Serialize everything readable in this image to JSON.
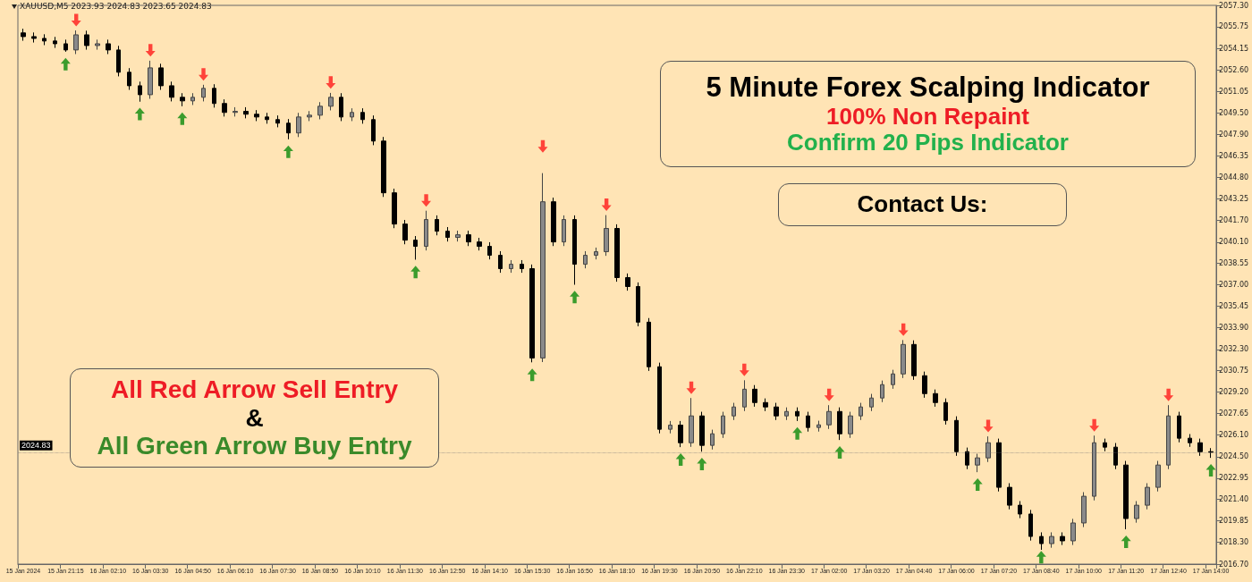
{
  "chart_data": {
    "type": "candlestick",
    "title": "5 Minute Forex Scalping Indicator",
    "annotations": [
      "XAUUSD,M5  2023.93 2024.83 2023.65 2024.83",
      "100% Non Repaint",
      "Confirm 20 Pips Indicator",
      "Contact Us:",
      "All Red Arrow Sell Entry",
      "&",
      "All Green Arrow Buy Entry"
    ],
    "categories": [
      "15 Jan 2024",
      null,
      null,
      null,
      "15 Jan 21:15",
      null,
      null,
      null,
      "16 Jan 02:10",
      null,
      null,
      null,
      "16 Jan 03:30",
      null,
      null,
      null,
      "16 Jan 04:50",
      null,
      null,
      null,
      "16 Jan 06:10",
      null,
      null,
      null,
      "16 Jan 07:30",
      null,
      null,
      null,
      "16 Jan 08:50",
      null,
      null,
      null,
      "16 Jan 10:10",
      null,
      null,
      null,
      "16 Jan 11:30",
      null,
      null,
      null,
      "16 Jan 12:50",
      null,
      null,
      null,
      "16 Jan 14:10",
      null,
      null,
      null,
      "16 Jan 15:30",
      null,
      null,
      null,
      "16 Jan 16:50",
      null,
      null,
      null,
      "16 Jan 18:10",
      null,
      null,
      null,
      "16 Jan 19:30",
      null,
      null,
      null,
      "16 Jan 20:50",
      null,
      null,
      null,
      "16 Jan 22:10",
      null,
      null,
      null,
      "16 Jan 23:30",
      null,
      null,
      null,
      "17 Jan 02:00",
      null,
      null,
      null,
      "17 Jan 03:20",
      null,
      null,
      null,
      "17 Jan 04:40",
      null,
      null,
      null,
      "17 Jan 06:00",
      null,
      null,
      null,
      "17 Jan 07:20",
      null,
      null,
      null,
      "17 Jan 08:40",
      null,
      null,
      null,
      "17 Jan 10:00",
      null,
      null,
      null,
      "17 Jan 11:20",
      null,
      null,
      null,
      "17 Jan 12:40",
      null,
      null,
      null,
      "17 Jan 14:00"
    ],
    "ohlc": [
      [
        2055.3,
        2055.6,
        2054.73,
        2055.03
      ],
      [
        2055.03,
        2055.33,
        2054.6,
        2054.9
      ],
      [
        2054.9,
        2055.2,
        2054.41,
        2054.71
      ],
      [
        2054.71,
        2055.01,
        2054.21,
        2054.51
      ],
      [
        2054.51,
        2054.81,
        2053.93,
        2054.06
      ],
      [
        2054.06,
        2055.48,
        2053.76,
        2055.16
      ],
      [
        2055.16,
        2055.46,
        2054.08,
        2054.38
      ],
      [
        2054.38,
        2054.81,
        2054.08,
        2054.51
      ],
      [
        2054.51,
        2054.81,
        2053.76,
        2054.06
      ],
      [
        2054.06,
        2054.36,
        2052.14,
        2052.44
      ],
      [
        2052.44,
        2052.74,
        2051.16,
        2051.46
      ],
      [
        2051.46,
        2051.76,
        2050.3,
        2050.81
      ],
      [
        2050.81,
        2053.28,
        2050.51,
        2052.76
      ],
      [
        2052.76,
        2053.06,
        2051.16,
        2051.46
      ],
      [
        2051.46,
        2051.76,
        2050.32,
        2050.62
      ],
      [
        2050.62,
        2050.92,
        2049.97,
        2050.36
      ],
      [
        2050.36,
        2050.92,
        2050.06,
        2050.62
      ],
      [
        2050.62,
        2051.53,
        2050.32,
        2051.27
      ],
      [
        2051.27,
        2051.57,
        2049.87,
        2050.17
      ],
      [
        2050.17,
        2050.47,
        2049.22,
        2049.52
      ],
      [
        2049.52,
        2049.9,
        2049.22,
        2049.6
      ],
      [
        2049.6,
        2049.9,
        2049.09,
        2049.39
      ],
      [
        2049.39,
        2049.69,
        2048.89,
        2049.19
      ],
      [
        2049.19,
        2049.49,
        2048.7,
        2049.0
      ],
      [
        2049.0,
        2049.3,
        2048.44,
        2048.74
      ],
      [
        2048.74,
        2049.04,
        2047.57,
        2048.03
      ],
      [
        2048.03,
        2049.49,
        2047.73,
        2049.19
      ],
      [
        2049.19,
        2049.62,
        2048.89,
        2049.32
      ],
      [
        2049.32,
        2050.27,
        2049.02,
        2049.97
      ],
      [
        2049.97,
        2050.94,
        2049.67,
        2050.62
      ],
      [
        2050.62,
        2050.92,
        2048.89,
        2049.19
      ],
      [
        2049.19,
        2049.82,
        2048.89,
        2049.52
      ],
      [
        2049.52,
        2049.82,
        2048.7,
        2049.0
      ],
      [
        2049.0,
        2049.3,
        2047.14,
        2047.44
      ],
      [
        2047.44,
        2047.74,
        2043.38,
        2043.68
      ],
      [
        2043.68,
        2043.98,
        2041.11,
        2041.41
      ],
      [
        2041.41,
        2041.71,
        2039.94,
        2040.24
      ],
      [
        2040.24,
        2040.54,
        2038.82,
        2039.79
      ],
      [
        2039.79,
        2042.38,
        2039.49,
        2041.74
      ],
      [
        2041.74,
        2042.04,
        2040.59,
        2040.89
      ],
      [
        2040.89,
        2041.19,
        2040.14,
        2040.44
      ],
      [
        2040.44,
        2040.93,
        2040.14,
        2040.63
      ],
      [
        2040.63,
        2040.93,
        2039.81,
        2040.11
      ],
      [
        2040.11,
        2040.41,
        2039.49,
        2039.79
      ],
      [
        2039.79,
        2040.09,
        2038.84,
        2039.14
      ],
      [
        2039.14,
        2039.44,
        2037.87,
        2038.17
      ],
      [
        2038.17,
        2038.79,
        2037.87,
        2038.49
      ],
      [
        2038.49,
        2038.79,
        2037.87,
        2038.17
      ],
      [
        2038.17,
        2038.47,
        2031.36,
        2031.68
      ],
      [
        2031.68,
        2045.11,
        2031.38,
        2043.03
      ],
      [
        2043.03,
        2043.33,
        2039.81,
        2040.11
      ],
      [
        2040.11,
        2042.04,
        2039.81,
        2041.74
      ],
      [
        2041.74,
        2042.04,
        2037.0,
        2038.49
      ],
      [
        2038.49,
        2039.44,
        2038.19,
        2039.14
      ],
      [
        2039.14,
        2039.7,
        2038.84,
        2039.4
      ],
      [
        2039.4,
        2042.06,
        2039.1,
        2041.09
      ],
      [
        2041.09,
        2041.39,
        2037.22,
        2037.52
      ],
      [
        2037.52,
        2037.82,
        2036.57,
        2036.87
      ],
      [
        2036.87,
        2037.17,
        2033.98,
        2034.28
      ],
      [
        2034.28,
        2034.58,
        2030.74,
        2031.04
      ],
      [
        2031.04,
        2031.34,
        2026.2,
        2026.5
      ],
      [
        2026.5,
        2027.1,
        2026.2,
        2026.8
      ],
      [
        2026.8,
        2027.1,
        2025.2,
        2025.52
      ],
      [
        2025.52,
        2028.77,
        2025.22,
        2027.47
      ],
      [
        2027.47,
        2027.77,
        2024.87,
        2025.33
      ],
      [
        2025.33,
        2026.47,
        2025.03,
        2026.17
      ],
      [
        2026.17,
        2027.77,
        2025.87,
        2027.47
      ],
      [
        2027.47,
        2028.42,
        2027.17,
        2028.12
      ],
      [
        2028.12,
        2030.06,
        2027.82,
        2029.41
      ],
      [
        2029.41,
        2029.71,
        2028.14,
        2028.44
      ],
      [
        2028.44,
        2028.74,
        2027.82,
        2028.12
      ],
      [
        2028.12,
        2028.42,
        2027.17,
        2027.47
      ],
      [
        2027.47,
        2028.09,
        2027.17,
        2027.79
      ],
      [
        2027.79,
        2028.09,
        2027.1,
        2027.47
      ],
      [
        2027.47,
        2027.77,
        2026.33,
        2026.63
      ],
      [
        2026.63,
        2027.12,
        2026.33,
        2026.82
      ],
      [
        2026.82,
        2028.25,
        2026.52,
        2027.79
      ],
      [
        2027.79,
        2028.09,
        2025.72,
        2026.17
      ],
      [
        2026.17,
        2027.77,
        2025.87,
        2027.47
      ],
      [
        2027.47,
        2028.42,
        2027.17,
        2028.12
      ],
      [
        2028.12,
        2029.07,
        2027.82,
        2028.77
      ],
      [
        2028.77,
        2030.04,
        2028.47,
        2029.74
      ],
      [
        2029.74,
        2030.82,
        2029.44,
        2030.52
      ],
      [
        2030.52,
        2032.98,
        2030.22,
        2032.66
      ],
      [
        2032.66,
        2032.96,
        2030.09,
        2030.39
      ],
      [
        2030.39,
        2030.69,
        2028.79,
        2029.09
      ],
      [
        2029.09,
        2029.39,
        2028.14,
        2028.44
      ],
      [
        2028.44,
        2028.74,
        2026.84,
        2027.14
      ],
      [
        2027.14,
        2027.44,
        2024.57,
        2024.87
      ],
      [
        2024.87,
        2025.17,
        2023.6,
        2023.9
      ],
      [
        2023.9,
        2024.72,
        2023.38,
        2024.42
      ],
      [
        2024.42,
        2025.98,
        2024.12,
        2025.52
      ],
      [
        2025.52,
        2025.82,
        2021.98,
        2022.28
      ],
      [
        2022.28,
        2022.58,
        2020.68,
        2020.98
      ],
      [
        2020.98,
        2021.28,
        2020.04,
        2020.34
      ],
      [
        2020.34,
        2020.64,
        2018.41,
        2018.71
      ],
      [
        2018.71,
        2019.01,
        2017.74,
        2018.19
      ],
      [
        2018.19,
        2019.01,
        2017.89,
        2018.71
      ],
      [
        2018.71,
        2019.01,
        2018.09,
        2018.39
      ],
      [
        2018.39,
        2019.99,
        2018.09,
        2019.69
      ],
      [
        2019.69,
        2021.93,
        2019.39,
        2021.63
      ],
      [
        2021.63,
        2026.04,
        2021.33,
        2025.52
      ],
      [
        2025.52,
        2025.82,
        2024.9,
        2025.2
      ],
      [
        2025.2,
        2025.5,
        2023.6,
        2023.9
      ],
      [
        2023.9,
        2024.2,
        2019.23,
        2020.01
      ],
      [
        2020.01,
        2021.28,
        2019.71,
        2020.98
      ],
      [
        2020.98,
        2022.58,
        2020.68,
        2022.28
      ],
      [
        2022.28,
        2024.2,
        2021.98,
        2023.9
      ],
      [
        2023.9,
        2028.25,
        2023.6,
        2027.47
      ],
      [
        2027.47,
        2027.77,
        2025.55,
        2025.85
      ],
      [
        2025.85,
        2026.15,
        2025.22,
        2025.52
      ],
      [
        2025.52,
        2025.82,
        2024.57,
        2024.87
      ],
      [
        2024.87,
        2025.13,
        2024.42,
        2024.83
      ]
    ],
    "series": [
      {
        "type": "scatter",
        "color": "#ff1a1a",
        "values": [
          null,
          null,
          null,
          null,
          null,
          2056.23,
          null,
          null,
          null,
          null,
          null,
          null,
          2054.03,
          null,
          null,
          null,
          null,
          2052.28,
          null,
          null,
          null,
          null,
          null,
          null,
          null,
          null,
          null,
          null,
          null,
          2051.69,
          null,
          null,
          null,
          null,
          null,
          null,
          null,
          null,
          2043.13,
          null,
          null,
          null,
          null,
          null,
          null,
          null,
          null,
          null,
          null,
          2047.05,
          null,
          null,
          null,
          null,
          null,
          2042.81,
          null,
          null,
          null,
          null,
          null,
          null,
          null,
          2029.52,
          null,
          null,
          null,
          null,
          2030.81,
          null,
          null,
          null,
          null,
          null,
          null,
          null,
          2029.0,
          null,
          null,
          null,
          null,
          null,
          null,
          2033.73,
          null,
          null,
          null,
          null,
          null,
          null,
          null,
          2026.73,
          null,
          null,
          null,
          null,
          null,
          null,
          null,
          null,
          null,
          2026.79,
          null,
          null,
          null,
          null,
          null,
          null,
          2029.0,
          null,
          null,
          null,
          null
        ]
      },
      {
        "type": "scatter",
        "color": "#0a8a0a",
        "values": [
          null,
          null,
          null,
          null,
          2053.03,
          null,
          null,
          null,
          null,
          null,
          null,
          2049.4,
          null,
          null,
          null,
          2049.07,
          null,
          null,
          null,
          null,
          null,
          null,
          null,
          null,
          null,
          2046.67,
          null,
          null,
          null,
          null,
          null,
          null,
          null,
          null,
          null,
          null,
          null,
          2037.92,
          null,
          null,
          null,
          null,
          null,
          null,
          null,
          null,
          null,
          null,
          2030.46,
          null,
          null,
          null,
          2036.1,
          null,
          null,
          null,
          null,
          null,
          null,
          null,
          null,
          null,
          2024.3,
          null,
          2023.97,
          null,
          null,
          null,
          null,
          null,
          null,
          null,
          null,
          2026.2,
          null,
          null,
          null,
          2024.82,
          null,
          null,
          null,
          null,
          null,
          null,
          null,
          null,
          null,
          null,
          null,
          null,
          2022.48,
          null,
          null,
          null,
          null,
          null,
          2017.2,
          null,
          null,
          null,
          null,
          null,
          null,
          null,
          2018.33,
          null,
          null,
          null,
          null,
          null,
          null,
          null,
          2023.52
        ]
      }
    ],
    "ylim": [
      2016.7,
      2057.3
    ],
    "yticks": [
      {
        "value": 2016.7,
        "label": "2016.70"
      },
      {
        "value": 2018.3,
        "label": "2018.30"
      },
      {
        "value": 2019.85,
        "label": "2019.85"
      },
      {
        "value": 2021.4,
        "label": "2021.40"
      },
      {
        "value": 2022.95,
        "label": "2022.95"
      },
      {
        "value": 2024.5,
        "label": "2024.50"
      },
      {
        "value": 2026.1,
        "label": "2026.10"
      },
      {
        "value": 2027.65,
        "label": "2027.65"
      },
      {
        "value": 2029.2,
        "label": "2029.20"
      },
      {
        "value": 2030.75,
        "label": "2030.75"
      },
      {
        "value": 2032.3,
        "label": "2032.30"
      },
      {
        "value": 2033.9,
        "label": "2033.90"
      },
      {
        "value": 2035.45,
        "label": "2035.45"
      },
      {
        "value": 2037,
        "label": "2037.00"
      },
      {
        "value": 2038.55,
        "label": "2038.55"
      },
      {
        "value": 2040.1,
        "label": "2040.10"
      },
      {
        "value": 2041.7,
        "label": "2041.70"
      },
      {
        "value": 2043.25,
        "label": "2043.25"
      },
      {
        "value": 2044.8,
        "label": "2044.80"
      },
      {
        "value": 2046.35,
        "label": "2046.35"
      },
      {
        "value": 2047.9,
        "label": "2047.90"
      },
      {
        "value": 2049.5,
        "label": "2049.50"
      },
      {
        "value": 2051.05,
        "label": "2051.05"
      },
      {
        "value": 2052.6,
        "label": "2052.60"
      },
      {
        "value": 2054.15,
        "label": "2054.15"
      },
      {
        "value": 2055.75,
        "label": "2055.75"
      },
      {
        "value": 2057.3,
        "label": "2057.30"
      }
    ],
    "ref_lines": [
      {
        "axis": "y",
        "value": 2024.83,
        "label": "2024.83"
      }
    ],
    "grid": false
  }
}
